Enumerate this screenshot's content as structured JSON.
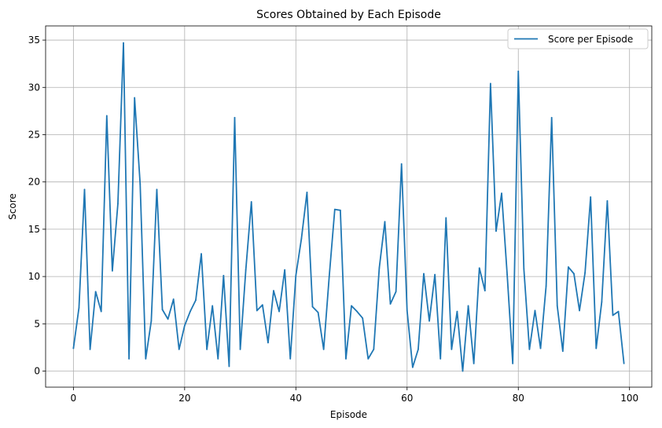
{
  "chart_data": {
    "type": "line",
    "title": "Scores Obtained by Each Episode",
    "xlabel": "Episode",
    "ylabel": "Score",
    "xlim": [
      -5,
      104
    ],
    "ylim": [
      -1.7,
      36.5
    ],
    "xticks": [
      0,
      20,
      40,
      60,
      80,
      100
    ],
    "yticks": [
      0,
      5,
      10,
      15,
      20,
      25,
      30,
      35
    ],
    "grid": true,
    "legend_position": "top-right",
    "series": [
      {
        "name": "Score per Episode",
        "color": "#1f77b4",
        "x": [
          0,
          1,
          2,
          3,
          4,
          5,
          6,
          7,
          8,
          9,
          10,
          11,
          12,
          13,
          14,
          15,
          16,
          17,
          18,
          19,
          20,
          21,
          22,
          23,
          24,
          25,
          26,
          27,
          28,
          29,
          30,
          31,
          32,
          33,
          34,
          35,
          36,
          37,
          38,
          39,
          40,
          41,
          42,
          43,
          44,
          45,
          46,
          47,
          48,
          49,
          50,
          51,
          52,
          53,
          54,
          55,
          56,
          57,
          58,
          59,
          60,
          61,
          62,
          63,
          64,
          65,
          66,
          67,
          68,
          69,
          70,
          71,
          72,
          73,
          74,
          75,
          76,
          77,
          78,
          79,
          80,
          81,
          82,
          83,
          84,
          85,
          86,
          87,
          88,
          89,
          90,
          91,
          92,
          93,
          94,
          95,
          96,
          97,
          98,
          99
        ],
        "values": [
          2.4,
          6.7,
          19.2,
          2.3,
          8.4,
          6.3,
          27.0,
          10.6,
          17.7,
          34.7,
          1.3,
          28.9,
          19.8,
          1.3,
          5.3,
          19.2,
          6.5,
          5.5,
          7.6,
          2.3,
          4.8,
          6.3,
          7.5,
          12.4,
          2.3,
          6.9,
          1.3,
          10.1,
          0.5,
          26.8,
          2.3,
          10.7,
          17.9,
          6.4,
          7.0,
          3.0,
          8.5,
          6.3,
          10.7,
          1.3,
          10.1,
          14.0,
          18.9,
          6.8,
          6.2,
          2.3,
          10.0,
          17.1,
          17.0,
          1.3,
          6.9,
          6.3,
          5.6,
          1.3,
          2.3,
          10.9,
          15.8,
          7.1,
          8.4,
          21.9,
          6.4,
          0.4,
          2.3,
          10.3,
          5.3,
          10.2,
          1.3,
          16.2,
          2.3,
          6.3,
          0.0,
          6.9,
          0.8,
          10.9,
          8.5,
          30.4,
          14.8,
          18.8,
          10.2,
          0.8,
          31.7,
          10.8,
          2.3,
          6.4,
          2.4,
          9.0,
          26.8,
          6.9,
          2.1,
          11.0,
          10.3,
          6.4,
          10.4,
          18.4,
          2.4,
          7.3,
          18.0,
          5.9,
          6.3,
          0.8
        ]
      }
    ]
  }
}
